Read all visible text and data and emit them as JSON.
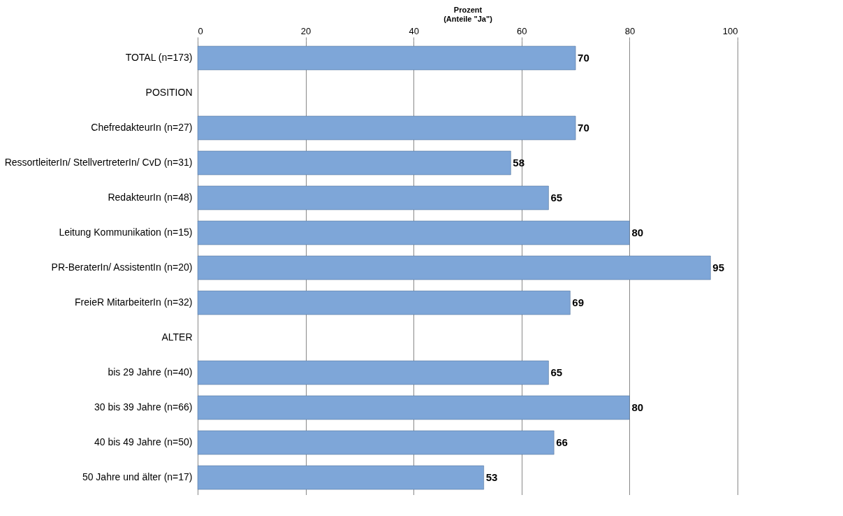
{
  "chart_data": {
    "type": "bar",
    "orientation": "horizontal",
    "xlabel": "Prozent\n(Anteile \"Ja\")",
    "categories": [
      "TOTAL (n=173)",
      "POSITION",
      "ChefredakteurIn (n=27)",
      "RessortleiterIn/ StellvertreterIn/ CvD (n=31)",
      "RedakteurIn (n=48)",
      "Leitung Kommunikation (n=15)",
      "PR-BeraterIn/ AssistentIn (n=20)",
      "FreieR MitarbeiterIn (n=32)",
      "ALTER",
      "bis 29 Jahre (n=40)",
      "30 bis 39 Jahre (n=66)",
      "40 bis 49 Jahre (n=50)",
      "50 Jahre und älter (n=17)"
    ],
    "values": [
      70,
      null,
      70,
      58,
      65,
      80,
      95,
      69,
      null,
      65,
      80,
      66,
      53
    ],
    "color": "#7ea6d8",
    "xlim": [
      0,
      100
    ],
    "xticks": [
      0,
      20,
      40,
      60,
      80,
      100
    ],
    "grid": "x",
    "data_labels": true
  }
}
